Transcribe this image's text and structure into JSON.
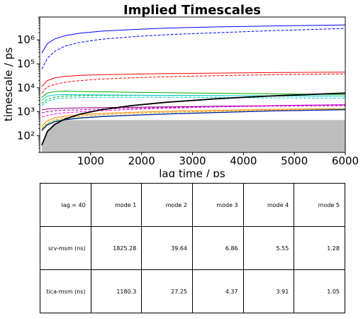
{
  "chart_data": {
    "type": "line",
    "title": "Implied Timescales",
    "xlabel": "lag time / ps",
    "ylabel": "timescale / ps",
    "xlim": [
      0,
      6000
    ],
    "ylim": [
      20,
      9000000
    ],
    "yscale": "log",
    "grid": false,
    "xticks": [
      1000,
      2000,
      3000,
      4000,
      5000,
      6000
    ],
    "xtick_labels": [
      "1000",
      "2000",
      "3000",
      "4000",
      "5000",
      "6000"
    ],
    "yticks": [
      100,
      1000,
      10000,
      100000,
      1000000
    ],
    "ytick_labels": [
      "10²",
      "10³",
      "10⁴",
      "10⁵",
      "10⁶"
    ],
    "x": [
      40,
      150,
      300,
      500,
      800,
      1200,
      1800,
      2500,
      3500,
      4500,
      6000
    ],
    "shaded_region": {
      "color": "#bdbdbd",
      "x": [
        40,
        150,
        300,
        500,
        800,
        1200,
        1800,
        2500,
        3500,
        4500,
        6000
      ],
      "upper": [
        40,
        150,
        300,
        450,
        450,
        450,
        450,
        450,
        450,
        450,
        450
      ],
      "lower": 20
    },
    "reference_line": {
      "color": "#000000",
      "x": [
        40,
        150,
        300,
        500,
        800,
        1200,
        1800,
        2500,
        3500,
        4500,
        6000
      ],
      "y": [
        40,
        150,
        300,
        500,
        800,
        1200,
        1800,
        2500,
        3500,
        4500,
        6000
      ]
    },
    "series": [
      {
        "color": "#0000ff",
        "style": "solid",
        "values": [
          280000,
          700000,
          1100000,
          1500000,
          1900000,
          2300000,
          2700000,
          3100000,
          3500000,
          3800000,
          4200000
        ]
      },
      {
        "color": "#0000ff",
        "style": "dashed",
        "values": [
          60000,
          170000,
          340000,
          550000,
          800000,
          1050000,
          1350000,
          1650000,
          2000000,
          2400000,
          3000000
        ]
      },
      {
        "color": "#ff0000",
        "style": "solid",
        "values": [
          11000,
          20000,
          26000,
          30000,
          33000,
          35000,
          37000,
          39000,
          41000,
          43000,
          45000
        ]
      },
      {
        "color": "#ff0000",
        "style": "dashed",
        "values": [
          6000,
          11000,
          14000,
          17000,
          20000,
          23000,
          26000,
          29000,
          32000,
          35000,
          38000
        ]
      },
      {
        "color": "#00aa00",
        "style": "solid",
        "values": [
          4000,
          6000,
          7000,
          7200,
          7000,
          6800,
          6500,
          6200,
          5900,
          5600,
          5200
        ]
      },
      {
        "color": "#00aa00",
        "style": "dashed",
        "values": [
          2200,
          3400,
          4100,
          4500,
          4700,
          4800,
          4800,
          4800,
          4700,
          4600,
          4500
        ]
      },
      {
        "color": "#00cccc",
        "style": "solid",
        "values": [
          3000,
          4500,
          5000,
          5200,
          5100,
          5000,
          4900,
          4800,
          4700,
          4600,
          4500
        ]
      },
      {
        "color": "#00cccc",
        "style": "dashed",
        "values": [
          1800,
          2800,
          3400,
          3700,
          3900,
          4000,
          4000,
          4000,
          3900,
          3800,
          3700
        ]
      },
      {
        "color": "#990099",
        "style": "solid",
        "values": [
          1200,
          1300,
          1350,
          1400,
          1450,
          1500,
          1550,
          1600,
          1700,
          1800,
          1950
        ]
      },
      {
        "color": "#990099",
        "style": "dashed",
        "values": [
          900,
          1000,
          1100,
          1150,
          1200,
          1300,
          1400,
          1500,
          1600,
          1700,
          1800
        ]
      },
      {
        "color": "#ff8800",
        "style": "solid",
        "values": [
          250,
          420,
          550,
          650,
          750,
          850,
          950,
          1050,
          1150,
          1250,
          1350
        ]
      },
      {
        "color": "#ff8800",
        "style": "dashed",
        "values": [
          200,
          340,
          450,
          550,
          650,
          750,
          850,
          950,
          1050,
          1150,
          1250
        ]
      },
      {
        "color": "#00aa00",
        "style": "solid",
        "values": [
          180,
          300,
          400,
          480,
          560,
          640,
          720,
          820,
          950,
          1080,
          1250
        ]
      },
      {
        "color": "#0000cc",
        "style": "solid",
        "values": [
          160,
          280,
          380,
          460,
          540,
          620,
          700,
          800,
          930,
          1060,
          1200
        ]
      },
      {
        "color": "#ff00ff",
        "style": "dashed",
        "values": [
          600,
          700,
          800,
          900,
          1000,
          1100,
          1250,
          1400,
          1600,
          1800,
          2000
        ]
      }
    ]
  },
  "table": {
    "header": [
      "lag = 40",
      "mode 1",
      "mode 2",
      "mode 3",
      "mode 4",
      "mode 5"
    ],
    "rows": [
      [
        "srv-msm (ns)",
        "1825.28",
        "39.64",
        "6.86",
        "5.55",
        "1.28"
      ],
      [
        "tica-msm (ns)",
        "1180.3",
        "27.25",
        "4.37",
        "3.91",
        "1.05"
      ]
    ]
  }
}
